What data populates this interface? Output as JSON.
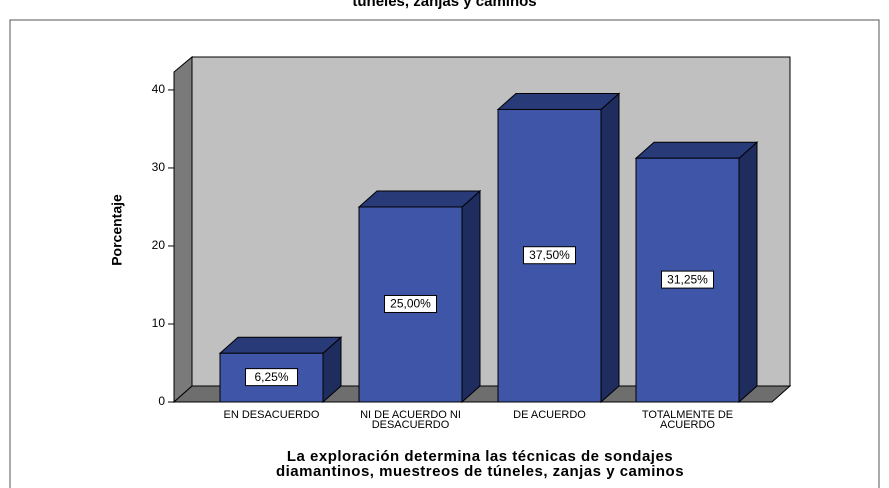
{
  "chart_data": {
    "type": "bar3d",
    "title": "túneles, zanjas y  caminos",
    "y_label": "Porcentaje",
    "x_label": "La exploración determina las  técnicas de sondajes\ndiamantinos, muestreos de túneles, zanjas y  caminos",
    "categories": [
      "EN DESACUERDO",
      "NI DE ACUERDO NI\nDESACUERDO",
      "DE ACUERDO",
      "TOTALMENTE DE\nACUERDO"
    ],
    "values": [
      6.25,
      25,
      37.5,
      31.25
    ],
    "value_labels": [
      "6,25%",
      "25,00%",
      "37,50%",
      "31,25%"
    ],
    "color": "#3f56a8",
    "ylim": [
      0,
      42.3
    ],
    "yticks": [
      0,
      10,
      20,
      30,
      40
    ]
  }
}
